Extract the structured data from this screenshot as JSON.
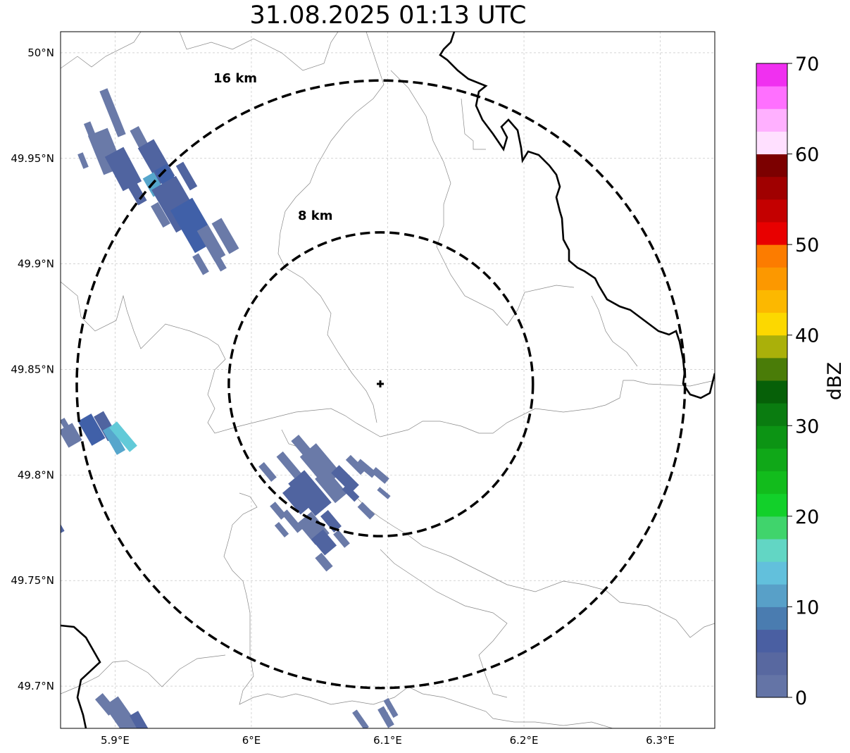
{
  "title": "31.08.2025 01:13 UTC",
  "map": {
    "lon_range": [
      5.86,
      6.34
    ],
    "lat_range": [
      49.68,
      50.01
    ],
    "center": {
      "lon": 6.095,
      "lat": 49.843
    },
    "x_ticks": [
      {
        "value": 5.9,
        "label": "5.9°E"
      },
      {
        "value": 6.0,
        "label": "6°E"
      },
      {
        "value": 6.1,
        "label": "6.1°E"
      },
      {
        "value": 6.2,
        "label": "6.2°E"
      },
      {
        "value": 6.3,
        "label": "6.3°E"
      }
    ],
    "y_ticks": [
      {
        "value": 49.7,
        "label": "49.7°N"
      },
      {
        "value": 49.75,
        "label": "49.75°N"
      },
      {
        "value": 49.8,
        "label": "49.8°N"
      },
      {
        "value": 49.85,
        "label": "49.85°N"
      },
      {
        "value": 49.9,
        "label": "49.9°N"
      },
      {
        "value": 49.95,
        "label": "49.95°N"
      },
      {
        "value": 50.0,
        "label": "50°N"
      }
    ],
    "range_rings": [
      {
        "radius_km": 8,
        "label": "8 km"
      },
      {
        "radius_km": 16,
        "label": "16 km"
      }
    ],
    "gridlines": true,
    "line_color": "#000000",
    "border_color": "#888888"
  },
  "colorbar": {
    "label": "dBZ",
    "min": 0,
    "max": 70,
    "step": 2.5,
    "tick_labels": [
      "0",
      "10",
      "20",
      "30",
      "40",
      "50",
      "60",
      "70"
    ],
    "colors": [
      "#6474a6",
      "#5868a0",
      "#4a5fa2",
      "#4a7cb0",
      "#58a0c8",
      "#62c0dc",
      "#62d6c4",
      "#40d46c",
      "#12d02a",
      "#12bc1c",
      "#10a818",
      "#0c9414",
      "#0a7c10",
      "#066008",
      "#4a7c08",
      "#aab00a",
      "#fcd800",
      "#fcb800",
      "#fc9800",
      "#fc7c00",
      "#e80000",
      "#c40000",
      "#a00000",
      "#7c0000",
      "#ffe0ff",
      "#ffb0ff",
      "#ff70ff",
      "#f030f0"
    ]
  },
  "echoes": {
    "colors": {
      "light": "#6a7aa8",
      "mid": "#5064a0",
      "dark": "#4060a8",
      "teal": "#56a6cc",
      "cyan": "#62cad8"
    }
  }
}
